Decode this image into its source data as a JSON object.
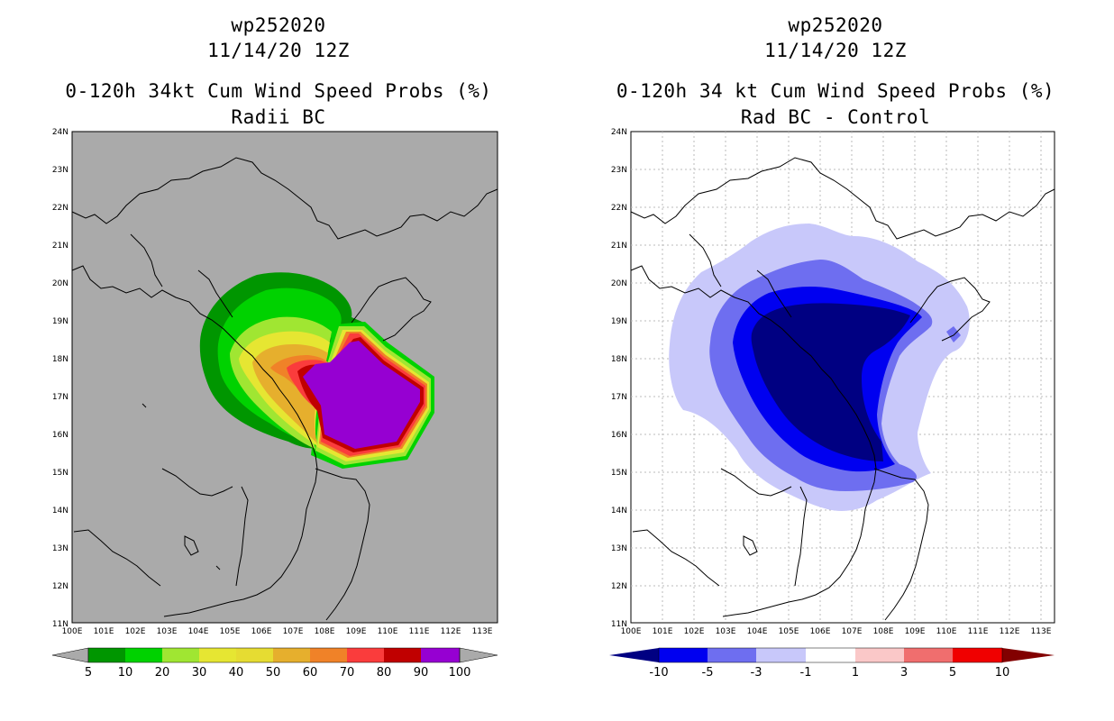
{
  "left": {
    "title_line1": "wp252020",
    "title_line2": "11/14/20 12Z",
    "title_line3": "0-120h 34kt Cum Wind Speed Probs (%)",
    "title_line4": "Radii BC",
    "colorbar": {
      "labels": [
        "5",
        "10",
        "20",
        "30",
        "40",
        "50",
        "60",
        "70",
        "80",
        "90",
        "100"
      ],
      "colors": [
        "#009600",
        "#00d200",
        "#a0e632",
        "#e6e632",
        "#e6dc32",
        "#e6af2d",
        "#f08228",
        "#fa3c3c",
        "#c00000",
        "#9600d2"
      ]
    }
  },
  "right": {
    "title_line1": "wp252020",
    "title_line2": "11/14/20 12Z",
    "title_line3": "0-120h 34 kt Cum Wind Speed Probs (%)",
    "title_line4": "Rad BC - Control",
    "colorbar": {
      "labels": [
        "-10",
        "-5",
        "-3",
        "-1",
        "1",
        "3",
        "5",
        "10"
      ],
      "colors": [
        "#000082",
        "#0000f0",
        "#6e6ef0",
        "#c8c8fa",
        "#ffffff",
        "#fac8c8",
        "#f06e6e",
        "#f00000",
        "#820000"
      ]
    }
  },
  "axes": {
    "lat_labels": [
      "24N",
      "23N",
      "22N",
      "21N",
      "20N",
      "19N",
      "18N",
      "17N",
      "16N",
      "15N",
      "14N",
      "13N",
      "12N",
      "11N"
    ],
    "lon_labels": [
      "100E",
      "101E",
      "102E",
      "103E",
      "104E",
      "105E",
      "106E",
      "107E",
      "108E",
      "109E",
      "110E",
      "111E",
      "112E",
      "113E"
    ],
    "lat_range": [
      11,
      24
    ],
    "lon_range": [
      100,
      113.5
    ]
  }
}
